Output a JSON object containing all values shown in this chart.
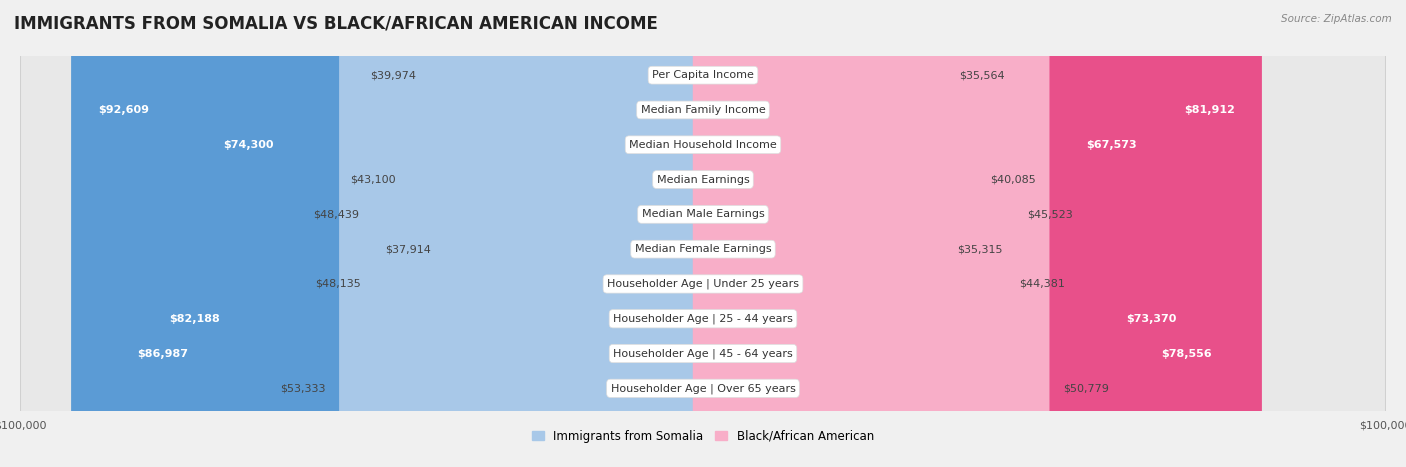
{
  "title": "IMMIGRANTS FROM SOMALIA VS BLACK/AFRICAN AMERICAN INCOME",
  "source": "Source: ZipAtlas.com",
  "categories": [
    "Per Capita Income",
    "Median Family Income",
    "Median Household Income",
    "Median Earnings",
    "Median Male Earnings",
    "Median Female Earnings",
    "Householder Age | Under 25 years",
    "Householder Age | 25 - 44 years",
    "Householder Age | 45 - 64 years",
    "Householder Age | Over 65 years"
  ],
  "somalia_values": [
    39974,
    92609,
    74300,
    43100,
    48439,
    37914,
    48135,
    82188,
    86987,
    53333
  ],
  "black_values": [
    35564,
    81912,
    67573,
    40085,
    45523,
    35315,
    44381,
    73370,
    78556,
    50779
  ],
  "somalia_labels": [
    "$39,974",
    "$92,609",
    "$74,300",
    "$43,100",
    "$48,439",
    "$37,914",
    "$48,135",
    "$82,188",
    "$86,987",
    "$53,333"
  ],
  "black_labels": [
    "$35,564",
    "$81,912",
    "$67,573",
    "$40,085",
    "$45,523",
    "$35,315",
    "$44,381",
    "$73,370",
    "$78,556",
    "$50,779"
  ],
  "max_value": 100000,
  "somalia_color_light": "#a8c8e8",
  "somalia_color_dark": "#5b9bd5",
  "black_color_light": "#f8aec8",
  "black_color_dark": "#e8508a",
  "dark_threshold": 65000,
  "bar_height": 0.52,
  "bg_color": "#f0f0f0",
  "row_color_even": "#ffffff",
  "row_color_odd": "#e8e8e8",
  "title_fontsize": 12,
  "label_fontsize": 8,
  "category_fontsize": 8,
  "legend_fontsize": 8.5,
  "axis_label_fontsize": 8
}
